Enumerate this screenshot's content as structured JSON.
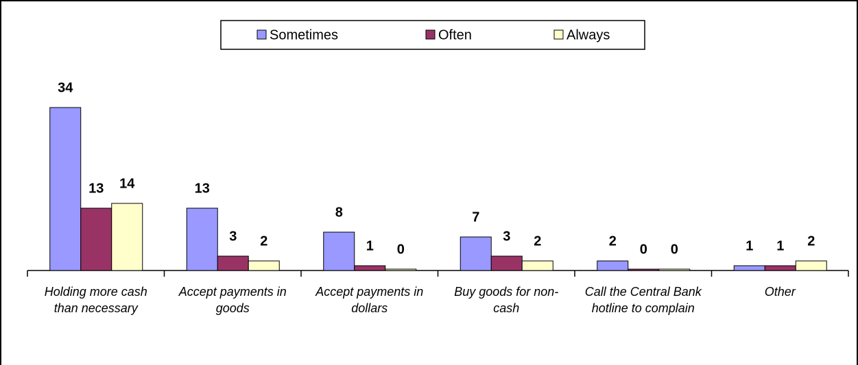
{
  "chart_data": {
    "type": "bar",
    "categories": [
      "Holding more cash than necessary",
      "Accept payments in goods",
      "Accept payments in dollars",
      "Buy goods for non-cash",
      "Call the Central Bank hotline to complain",
      "Other"
    ],
    "series": [
      {
        "name": "Sometimes",
        "color": "#9999ff",
        "values": [
          34,
          13,
          8,
          7,
          2,
          1
        ]
      },
      {
        "name": "Often",
        "color": "#993366",
        "values": [
          13,
          3,
          1,
          3,
          0,
          1
        ]
      },
      {
        "name": "Always",
        "color": "#ffffcc",
        "values": [
          14,
          2,
          0,
          2,
          0,
          2
        ]
      }
    ],
    "legend": "top"
  }
}
